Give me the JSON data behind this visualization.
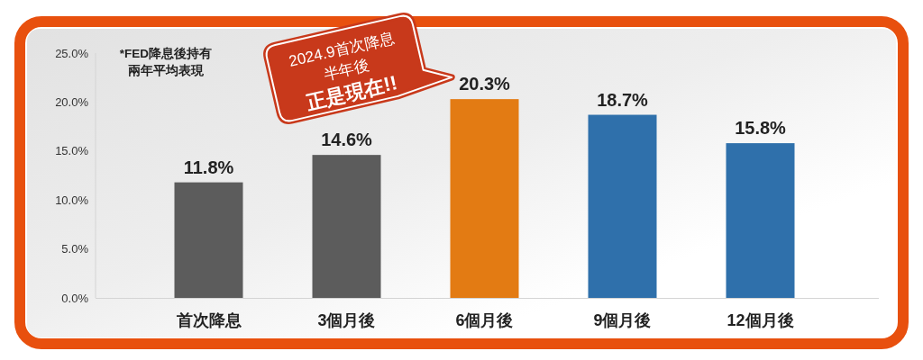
{
  "chart_data": {
    "type": "bar",
    "categories": [
      "首次降息",
      "3個月後",
      "6個月後",
      "9個月後",
      "12個月後"
    ],
    "values": [
      11.8,
      14.6,
      20.3,
      18.7,
      15.8
    ],
    "colors": [
      "#5c5c5c",
      "#5c5c5c",
      "#e37b13",
      "#2f70ab",
      "#2f70ab"
    ],
    "value_labels": [
      "11.8%",
      "14.6%",
      "20.3%",
      "18.7%",
      "15.8%"
    ],
    "ylim": [
      0,
      25
    ],
    "yticks": [
      {
        "value": 0,
        "label": "0.0%"
      },
      {
        "value": 5,
        "label": "5.0%"
      },
      {
        "value": 10,
        "label": "10.0%"
      },
      {
        "value": 15,
        "label": "15.0%"
      },
      {
        "value": 20,
        "label": "20.0%"
      },
      {
        "value": 25,
        "label": "25.0%"
      }
    ],
    "annotations": [
      "*FED降息後持有兩年平均表現",
      "2024.9首次降息半年後",
      "正是現在!!"
    ]
  }
}
